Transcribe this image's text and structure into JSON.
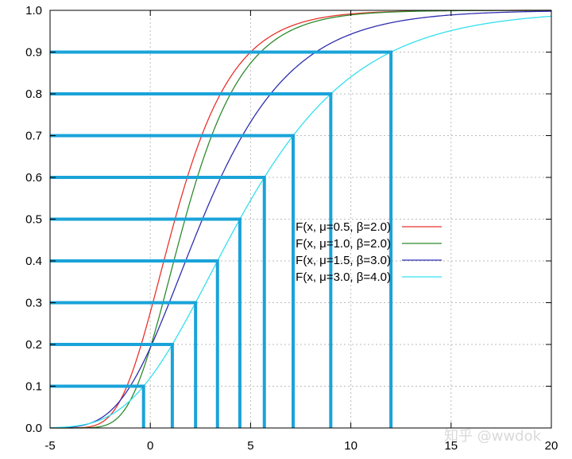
{
  "chart_data": {
    "type": "line",
    "title": "",
    "xlabel": "",
    "ylabel": "",
    "xlim": [
      -5,
      20
    ],
    "ylim": [
      0,
      1
    ],
    "grid": true,
    "grid_style": "dashed",
    "legend_position": "center-right",
    "x_ticks": [
      "-5",
      "0",
      "5",
      "10",
      "15",
      "20"
    ],
    "y_ticks": [
      "0.0",
      "0.1",
      "0.2",
      "0.3",
      "0.4",
      "0.5",
      "0.6",
      "0.7",
      "0.8",
      "0.9",
      "1.0"
    ],
    "series": [
      {
        "name": "F(x, μ=0.5, β=2.0)",
        "color": "#e8332c",
        "mu": 0.5,
        "beta": 2.0
      },
      {
        "name": "F(x, μ=1.0, β=2.0)",
        "color": "#2e8b2e",
        "mu": 1.0,
        "beta": 2.0
      },
      {
        "name": "F(x, μ=1.5, β=3.0)",
        "color": "#2f2fb0",
        "mu": 1.5,
        "beta": 3.0
      },
      {
        "name": "F(x, μ=3.0, β=4.0)",
        "color": "#33e0ee",
        "mu": 3.0,
        "beta": 4.0
      }
    ],
    "annotations": {
      "type": "quantile-guides",
      "color": "#1aa3d9",
      "series_ref": "F(x, μ=3.0, β=4.0)",
      "levels": [
        0.1,
        0.2,
        0.3,
        0.4,
        0.5,
        0.6,
        0.7,
        0.8,
        0.9
      ]
    }
  },
  "watermark": "知乎 @wwdok"
}
